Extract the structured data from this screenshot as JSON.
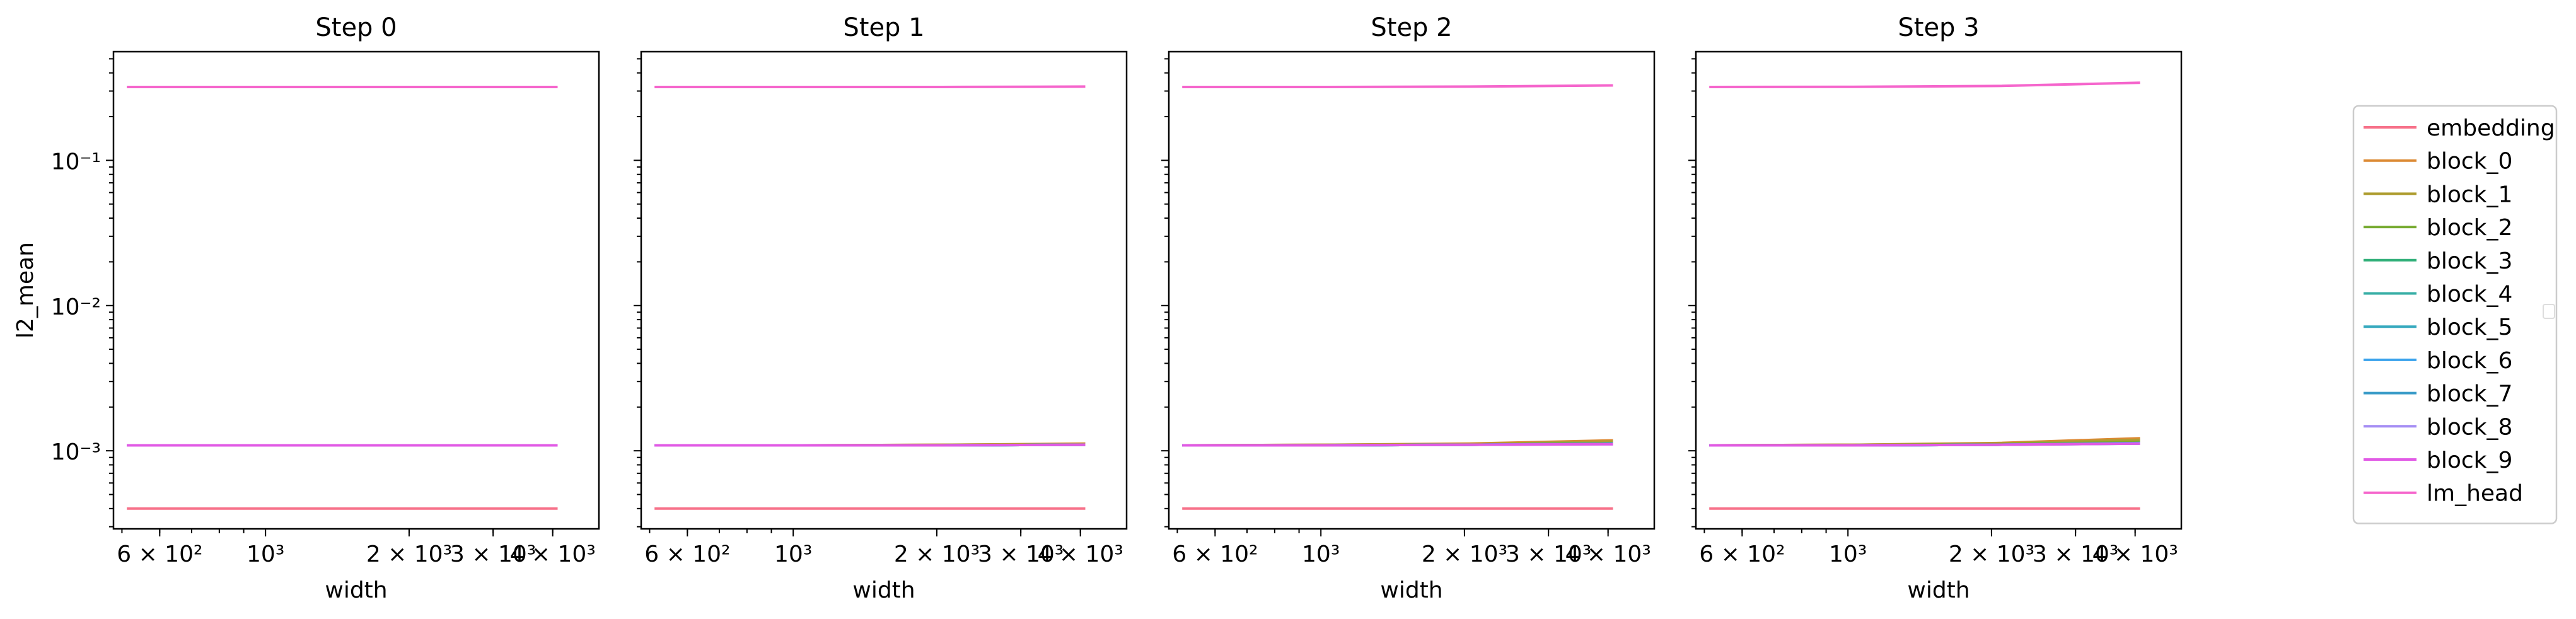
{
  "chart_data": {
    "type": "line",
    "layout": "1x4 small multiples, shared log-scale y axis",
    "x_scale": "log",
    "y_scale": "log",
    "xlabel": "width",
    "ylabel": "l2_mean",
    "x_ticks": [
      "6 × 10²",
      "10³",
      "2 × 10³",
      "3 × 10³",
      "4 × 10³"
    ],
    "x_tick_values": [
      600,
      1000,
      2000,
      3000,
      4000
    ],
    "y_ticks": [
      "10⁻³",
      "10⁻²",
      "10⁻¹"
    ],
    "y_tick_values": [
      0.001,
      0.01,
      0.1
    ],
    "xlim": [
      480,
      5000
    ],
    "ylim": [
      0.00029,
      0.56
    ],
    "grid": false,
    "legend_placement": "right, outside plots",
    "x": [
      512,
      1024,
      2048,
      4096
    ],
    "panels": [
      {
        "title": "Step 0",
        "series": [
          {
            "name": "embedding",
            "color": "#f77189",
            "values": [
              0.0004,
              0.0004,
              0.0004,
              0.0004
            ]
          },
          {
            "name": "block_0",
            "color": "#dc8932",
            "values": [
              0.00109,
              0.00109,
              0.00109,
              0.00109
            ]
          },
          {
            "name": "block_1",
            "color": "#ae9d31",
            "values": [
              0.00109,
              0.00109,
              0.00109,
              0.00109
            ]
          },
          {
            "name": "block_2",
            "color": "#77ab31",
            "values": [
              0.00109,
              0.00109,
              0.00109,
              0.00109
            ]
          },
          {
            "name": "block_3",
            "color": "#33b07a",
            "values": [
              0.00109,
              0.00109,
              0.00109,
              0.00109
            ]
          },
          {
            "name": "block_4",
            "color": "#36ada4",
            "values": [
              0.00109,
              0.00109,
              0.00109,
              0.00109
            ]
          },
          {
            "name": "block_5",
            "color": "#38aabf",
            "values": [
              0.00109,
              0.00109,
              0.00109,
              0.00109
            ]
          },
          {
            "name": "block_6",
            "color": "#3ba3ec",
            "values": [
              0.00109,
              0.00109,
              0.00109,
              0.00109
            ]
          },
          {
            "name": "block_7",
            "color": "#3a9cc8",
            "values": [
              0.00109,
              0.00109,
              0.00109,
              0.00109
            ]
          },
          {
            "name": "block_8",
            "color": "#a48cf4",
            "values": [
              0.00109,
              0.00109,
              0.00109,
              0.00109
            ]
          },
          {
            "name": "block_9",
            "color": "#e15ae5",
            "values": [
              0.00109,
              0.00109,
              0.00109,
              0.00109
            ]
          },
          {
            "name": "lm_head",
            "color": "#f565cc",
            "values": [
              0.32,
              0.32,
              0.32,
              0.32
            ]
          }
        ]
      },
      {
        "title": "Step 1",
        "series": [
          {
            "name": "embedding",
            "color": "#f77189",
            "values": [
              0.0004,
              0.0004,
              0.0004,
              0.0004
            ]
          },
          {
            "name": "block_0",
            "color": "#dc8932",
            "values": [
              0.00109,
              0.00109,
              0.0011,
              0.00112
            ]
          },
          {
            "name": "block_1",
            "color": "#ae9d31",
            "values": [
              0.00109,
              0.00109,
              0.0011,
              0.00111
            ]
          },
          {
            "name": "block_2",
            "color": "#77ab31",
            "values": [
              0.00109,
              0.00109,
              0.00109,
              0.0011
            ]
          },
          {
            "name": "block_3",
            "color": "#33b07a",
            "values": [
              0.00109,
              0.00109,
              0.00109,
              0.0011
            ]
          },
          {
            "name": "block_4",
            "color": "#36ada4",
            "values": [
              0.00109,
              0.00109,
              0.00109,
              0.0011
            ]
          },
          {
            "name": "block_5",
            "color": "#38aabf",
            "values": [
              0.00109,
              0.00109,
              0.00109,
              0.0011
            ]
          },
          {
            "name": "block_6",
            "color": "#3ba3ec",
            "values": [
              0.00109,
              0.00109,
              0.00109,
              0.0011
            ]
          },
          {
            "name": "block_7",
            "color": "#3a9cc8",
            "values": [
              0.00109,
              0.00109,
              0.00109,
              0.0011
            ]
          },
          {
            "name": "block_8",
            "color": "#a48cf4",
            "values": [
              0.00109,
              0.00109,
              0.00109,
              0.0011
            ]
          },
          {
            "name": "block_9",
            "color": "#e15ae5",
            "values": [
              0.00109,
              0.00109,
              0.00109,
              0.0011
            ]
          },
          {
            "name": "lm_head",
            "color": "#f565cc",
            "values": [
              0.32,
              0.32,
              0.32,
              0.322
            ]
          }
        ]
      },
      {
        "title": "Step 2",
        "series": [
          {
            "name": "embedding",
            "color": "#f77189",
            "values": [
              0.0004,
              0.0004,
              0.0004,
              0.0004
            ]
          },
          {
            "name": "block_0",
            "color": "#dc8932",
            "values": [
              0.00109,
              0.0011,
              0.00112,
              0.00118
            ]
          },
          {
            "name": "block_1",
            "color": "#ae9d31",
            "values": [
              0.00109,
              0.0011,
              0.00111,
              0.00116
            ]
          },
          {
            "name": "block_2",
            "color": "#77ab31",
            "values": [
              0.00109,
              0.00109,
              0.0011,
              0.00113
            ]
          },
          {
            "name": "block_3",
            "color": "#33b07a",
            "values": [
              0.00109,
              0.00109,
              0.0011,
              0.00112
            ]
          },
          {
            "name": "block_4",
            "color": "#36ada4",
            "values": [
              0.00109,
              0.00109,
              0.0011,
              0.00112
            ]
          },
          {
            "name": "block_5",
            "color": "#38aabf",
            "values": [
              0.00109,
              0.00109,
              0.0011,
              0.00112
            ]
          },
          {
            "name": "block_6",
            "color": "#3ba3ec",
            "values": [
              0.00109,
              0.00109,
              0.0011,
              0.00112
            ]
          },
          {
            "name": "block_7",
            "color": "#3a9cc8",
            "values": [
              0.00109,
              0.00109,
              0.0011,
              0.00112
            ]
          },
          {
            "name": "block_8",
            "color": "#a48cf4",
            "values": [
              0.00109,
              0.00109,
              0.0011,
              0.00111
            ]
          },
          {
            "name": "block_9",
            "color": "#e15ae5",
            "values": [
              0.00109,
              0.00109,
              0.0011,
              0.00111
            ]
          },
          {
            "name": "lm_head",
            "color": "#f565cc",
            "values": [
              0.32,
              0.32,
              0.322,
              0.328
            ]
          }
        ]
      },
      {
        "title": "Step 3",
        "series": [
          {
            "name": "embedding",
            "color": "#f77189",
            "values": [
              0.0004,
              0.0004,
              0.0004,
              0.0004
            ]
          },
          {
            "name": "block_0",
            "color": "#dc8932",
            "values": [
              0.00109,
              0.0011,
              0.00113,
              0.00122
            ]
          },
          {
            "name": "block_1",
            "color": "#ae9d31",
            "values": [
              0.00109,
              0.0011,
              0.00112,
              0.00119
            ]
          },
          {
            "name": "block_2",
            "color": "#77ab31",
            "values": [
              0.00109,
              0.00109,
              0.00111,
              0.00115
            ]
          },
          {
            "name": "block_3",
            "color": "#33b07a",
            "values": [
              0.00109,
              0.00109,
              0.0011,
              0.00113
            ]
          },
          {
            "name": "block_4",
            "color": "#36ada4",
            "values": [
              0.00109,
              0.00109,
              0.0011,
              0.00113
            ]
          },
          {
            "name": "block_5",
            "color": "#38aabf",
            "values": [
              0.00109,
              0.00109,
              0.0011,
              0.00113
            ]
          },
          {
            "name": "block_6",
            "color": "#3ba3ec",
            "values": [
              0.00109,
              0.00109,
              0.0011,
              0.00113
            ]
          },
          {
            "name": "block_7",
            "color": "#3a9cc8",
            "values": [
              0.00109,
              0.00109,
              0.0011,
              0.00112
            ]
          },
          {
            "name": "block_8",
            "color": "#a48cf4",
            "values": [
              0.00109,
              0.00109,
              0.0011,
              0.00112
            ]
          },
          {
            "name": "block_9",
            "color": "#e15ae5",
            "values": [
              0.00109,
              0.00109,
              0.0011,
              0.00112
            ]
          },
          {
            "name": "lm_head",
            "color": "#f565cc",
            "values": [
              0.32,
              0.321,
              0.325,
              0.342
            ]
          }
        ]
      }
    ],
    "legend": [
      {
        "name": "embedding",
        "color": "#f77189"
      },
      {
        "name": "block_0",
        "color": "#dc8932"
      },
      {
        "name": "block_1",
        "color": "#ae9d31"
      },
      {
        "name": "block_2",
        "color": "#77ab31"
      },
      {
        "name": "block_3",
        "color": "#33b07a"
      },
      {
        "name": "block_4",
        "color": "#36ada4"
      },
      {
        "name": "block_5",
        "color": "#38aabf"
      },
      {
        "name": "block_6",
        "color": "#3ba3ec"
      },
      {
        "name": "block_7",
        "color": "#3a9cc8"
      },
      {
        "name": "block_8",
        "color": "#a48cf4"
      },
      {
        "name": "block_9",
        "color": "#e15ae5"
      },
      {
        "name": "lm_head",
        "color": "#f565cc"
      }
    ]
  }
}
